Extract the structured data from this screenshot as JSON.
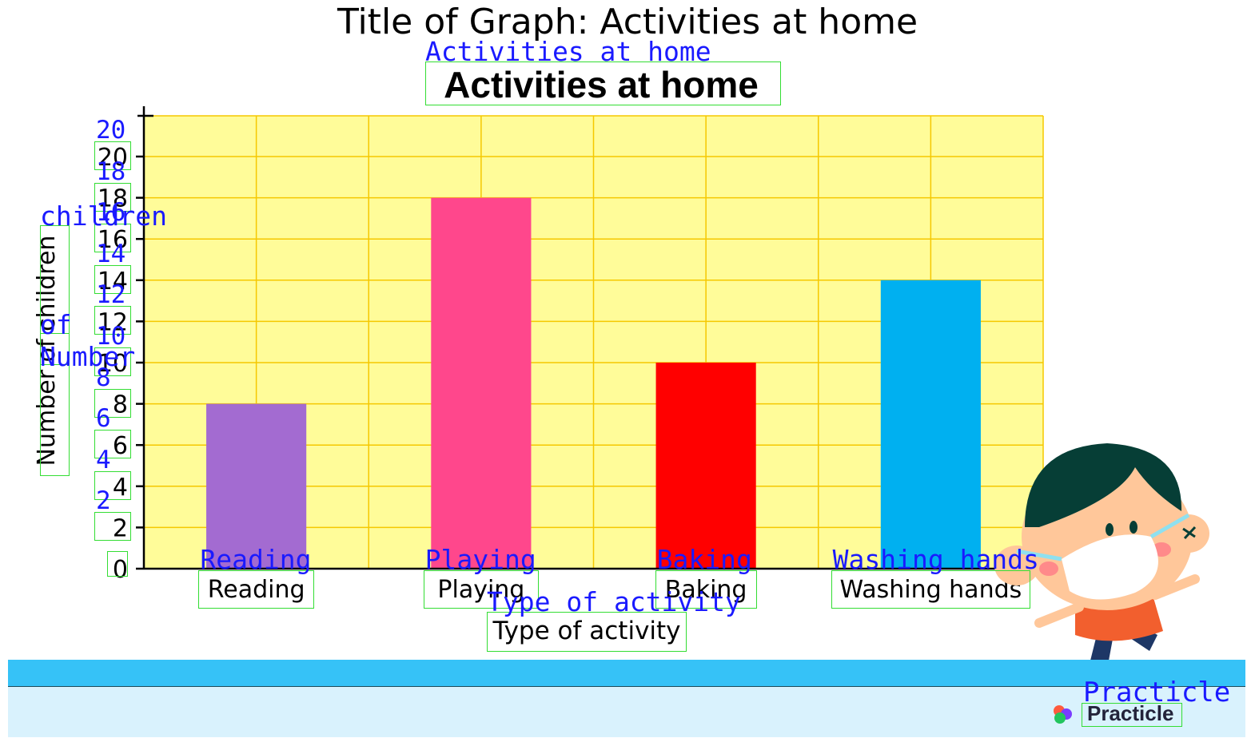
{
  "page_title": "Title of Graph: Activities at home",
  "ocr_overlay": {
    "title": "Activities at home",
    "ylabel_words": [
      "children",
      "of",
      "Number"
    ],
    "xlabel": "Type of activity",
    "ytick_labels": [
      "20",
      "18",
      "16",
      "14",
      "12",
      "10",
      "8",
      "6",
      "4",
      "2"
    ],
    "categories": [
      "Reading",
      "Playing",
      "Baking",
      "Washing hands"
    ],
    "brand": "Practicle"
  },
  "brand": {
    "name": "Practicle"
  },
  "chart_data": {
    "type": "bar",
    "title": "Activities at home",
    "xlabel": "Type of activity",
    "ylabel": "Number of children",
    "categories": [
      "Reading",
      "Playing",
      "Baking",
      "Washing hands"
    ],
    "values": [
      8,
      18,
      10,
      14
    ],
    "bar_colors": [
      "#a36bd1",
      "#ff478c",
      "#ff0000",
      "#00b0f0"
    ],
    "ylim": [
      0,
      20
    ],
    "yticks": [
      "0",
      "2",
      "4",
      "6",
      "8",
      "10",
      "12",
      "14",
      "16",
      "18",
      "20"
    ],
    "grid": true,
    "plot_background": "#fffc99",
    "grid_color": "#f5c800"
  },
  "colors": {
    "ocr_text": "#1a1aff",
    "ocr_box": "#33dd33",
    "band_top": "#36c2f7",
    "band_bottom": "#d9f2fd"
  }
}
